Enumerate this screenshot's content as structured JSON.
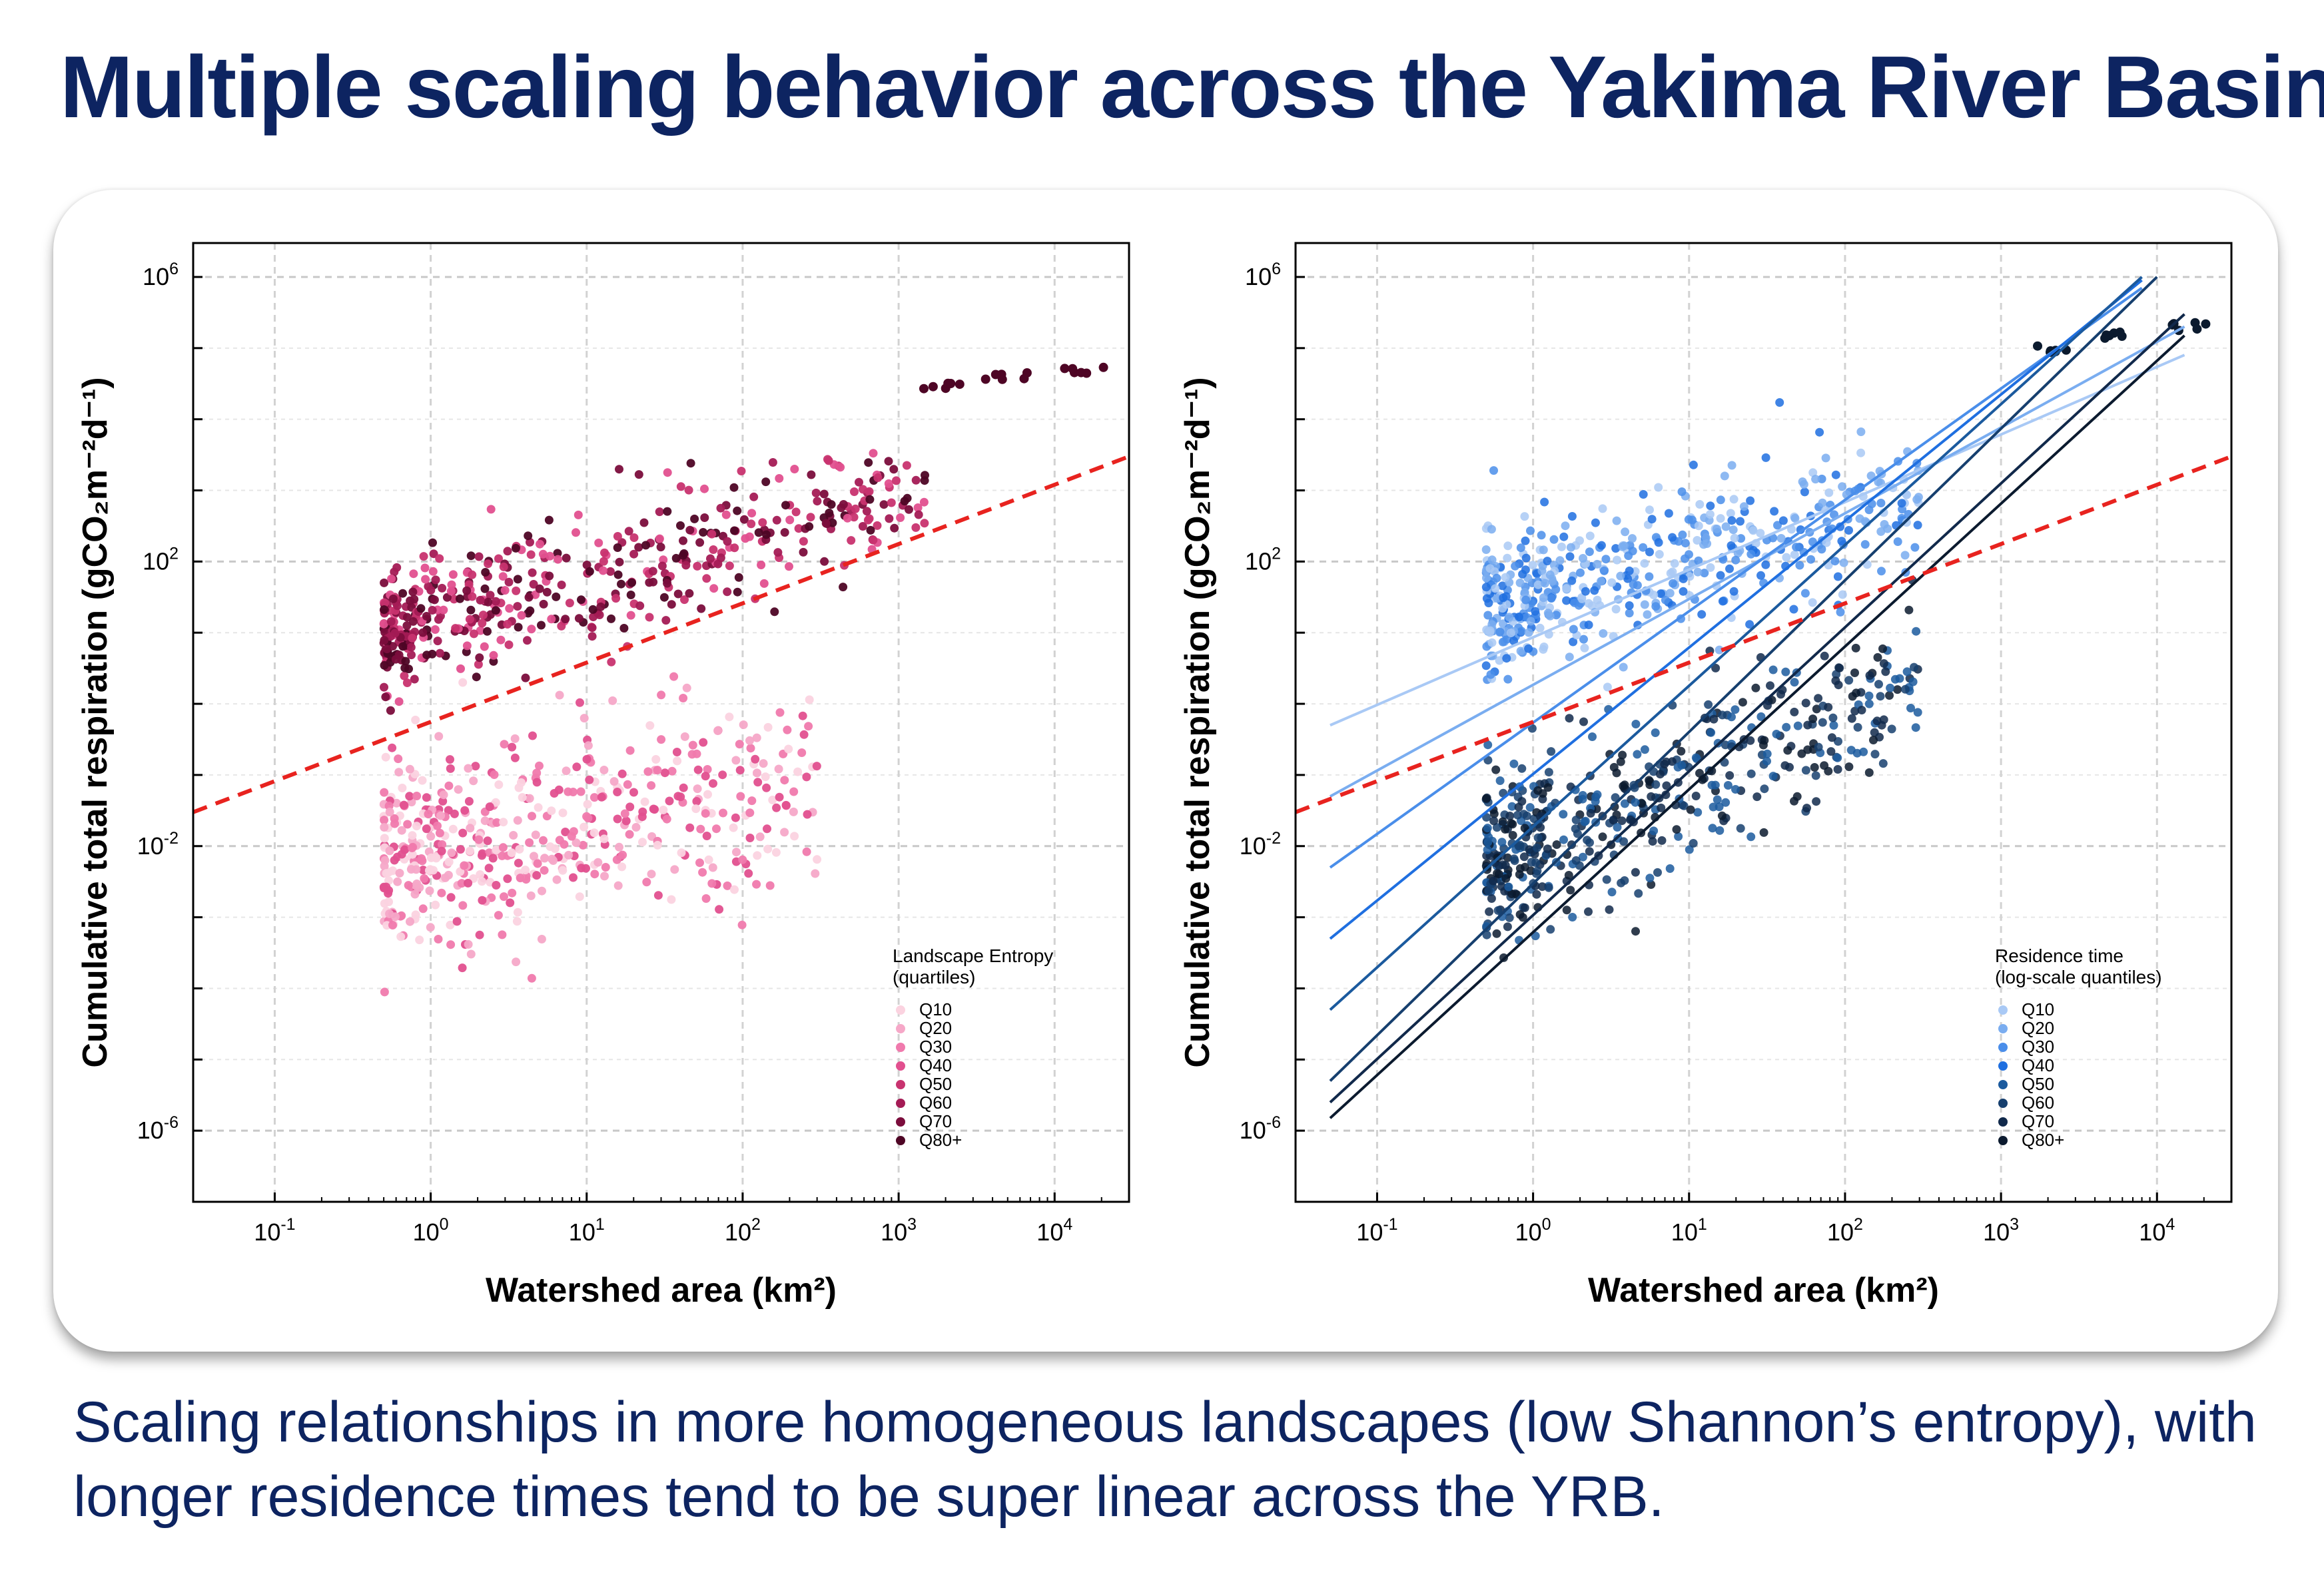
{
  "title": "Multiple scaling behavior across the Yakima River Basin",
  "caption": {
    "line1": "Scaling relationships in more homogeneous landscapes (low Shannon’s entropy), with",
    "line2": "longer residence times tend to be super linear across the YRB."
  },
  "colors": {
    "title": "#0d2461",
    "reference_line": "#e8231f",
    "entropy_palette": [
      "#fbd3e0",
      "#f6a8c8",
      "#f07aad",
      "#e2508f",
      "#c8336f",
      "#a41b55",
      "#7b0d3c",
      "#4e0525"
    ],
    "residence_palette": [
      "#a9c9f5",
      "#7aadf0",
      "#4a8eea",
      "#1f6fe0",
      "#1b5a9e",
      "#163f6e",
      "#11294b",
      "#0b1a2e"
    ]
  },
  "chart_data": [
    {
      "type": "scatter",
      "title": "",
      "xlabel": "Watershed area (km²)",
      "ylabel": "Cumulative total respiration (gCO₂m⁻²d⁻¹)",
      "x_scale": "log",
      "y_scale": "log",
      "xlim": [
        0.03,
        30000
      ],
      "ylim": [
        1e-07,
        3000000
      ],
      "x_ticks": [
        "10^-1",
        "10^0",
        "10^1",
        "10^2",
        "10^3",
        "10^4"
      ],
      "y_ticks": [
        "10^-6",
        "10^-2",
        "10^2",
        "10^6"
      ],
      "grid": true,
      "legend_title_line1": "Landscape Entropy",
      "legend_title_line2": "(quartiles)",
      "legend_position": "bottom-right",
      "legend": [
        "Q10",
        "Q20",
        "Q30",
        "Q40",
        "Q50",
        "Q60",
        "Q70",
        "Q80+"
      ],
      "reference_line": {
        "style": "dashed",
        "points": [
          [
            0.03,
            0.03
          ],
          [
            30000,
            3000
          ]
        ]
      },
      "fit_lines": [],
      "clusters": [
        {
          "x_range": [
            0.5,
            300
          ],
          "y_center_at_1": 0.008,
          "slope": 0.45,
          "spread": 1.2,
          "quantiles": [
            0,
            1,
            2,
            3
          ]
        },
        {
          "x_range": [
            0.5,
            1500
          ],
          "y_center_at_1": 15,
          "slope": 0.6,
          "spread": 0.8,
          "quantiles": [
            3,
            4,
            5,
            6,
            7
          ]
        }
      ],
      "upper_tail": [
        [
          2000,
          30000
        ],
        [
          5000,
          40000
        ],
        [
          15000,
          50000
        ]
      ]
    },
    {
      "type": "scatter",
      "title": "",
      "xlabel": "Watershed area (km²)",
      "ylabel": "Cumulative total respiration (gCO₂m⁻²d⁻¹)",
      "x_scale": "log",
      "y_scale": "log",
      "xlim": [
        0.03,
        30000
      ],
      "ylim": [
        1e-07,
        3000000
      ],
      "x_ticks": [
        "10^-1",
        "10^0",
        "10^1",
        "10^2",
        "10^3",
        "10^4"
      ],
      "y_ticks": [
        "10^-6",
        "10^-2",
        "10^2",
        "10^6"
      ],
      "grid": true,
      "legend_title_line1": "Residence time",
      "legend_title_line2": "(log-scale quantiles)",
      "legend_position": "bottom-right",
      "legend": [
        "Q10",
        "Q20",
        "Q30",
        "Q40",
        "Q50",
        "Q60",
        "Q70",
        "Q80+"
      ],
      "reference_line": {
        "style": "dashed",
        "points": [
          [
            0.03,
            0.03
          ],
          [
            30000,
            3000
          ]
        ]
      },
      "fit_lines": [
        {
          "quantile": 0,
          "points": [
            [
              0.05,
              0.5
            ],
            [
              15000,
              80000
            ]
          ]
        },
        {
          "quantile": 1,
          "points": [
            [
              0.05,
              0.05
            ],
            [
              15000,
              200000
            ]
          ]
        },
        {
          "quantile": 2,
          "points": [
            [
              0.05,
              0.005
            ],
            [
              8000,
              700000
            ]
          ]
        },
        {
          "quantile": 3,
          "points": [
            [
              0.05,
              0.0005
            ],
            [
              8000,
              900000
            ]
          ]
        },
        {
          "quantile": 4,
          "points": [
            [
              0.05,
              5e-05
            ],
            [
              8000,
              1000000
            ]
          ]
        },
        {
          "quantile": 5,
          "points": [
            [
              0.05,
              5e-06
            ],
            [
              10000,
              1000000
            ]
          ]
        },
        {
          "quantile": 6,
          "points": [
            [
              0.05,
              2.5e-06
            ],
            [
              15000,
              300000
            ]
          ]
        },
        {
          "quantile": 7,
          "points": [
            [
              0.05,
              1.5e-06
            ],
            [
              15000,
              150000
            ]
          ]
        }
      ],
      "clusters": [
        {
          "x_range": [
            0.5,
            300
          ],
          "y_center_at_1": 30,
          "slope": 0.55,
          "spread": 0.9,
          "quantiles": [
            0,
            1,
            2,
            3
          ]
        },
        {
          "x_range": [
            0.5,
            300
          ],
          "y_center_at_1": 0.01,
          "slope": 0.9,
          "spread": 1.1,
          "quantiles": [
            4,
            5,
            6,
            7
          ]
        }
      ],
      "upper_tail": [
        [
          2000,
          100000
        ],
        [
          5000,
          150000
        ],
        [
          15000,
          200000
        ]
      ]
    }
  ]
}
